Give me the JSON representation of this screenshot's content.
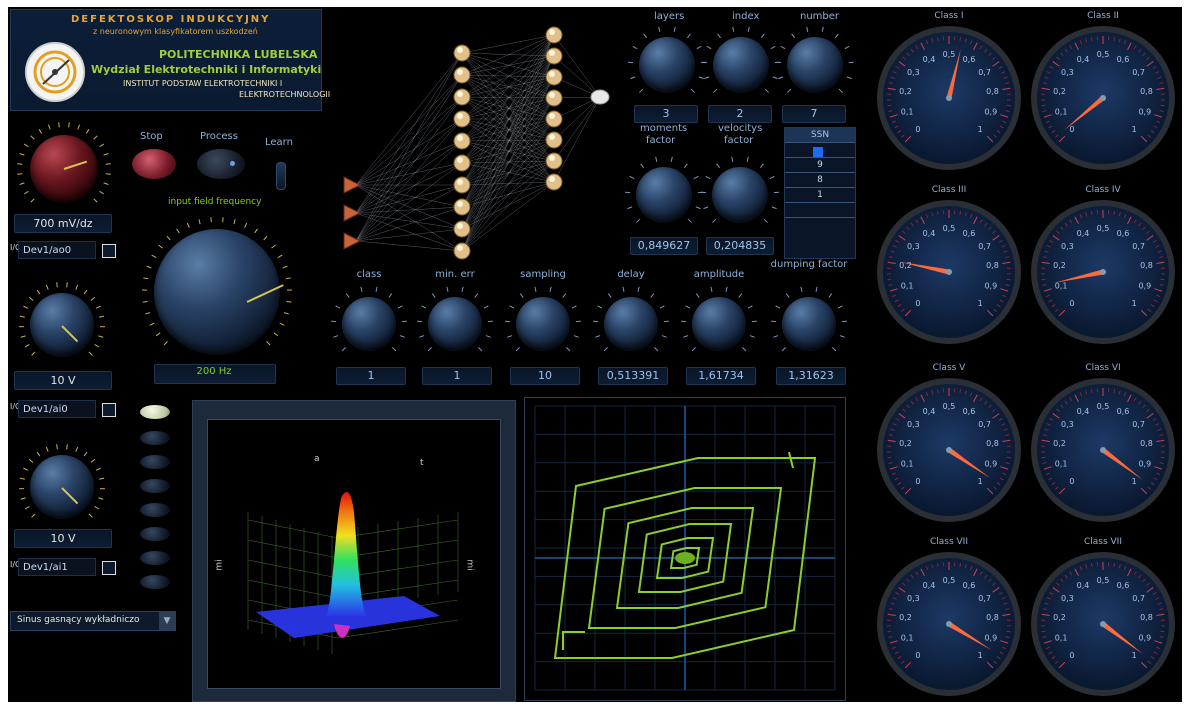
{
  "header": {
    "title": "DEFEKTOSKOP INDUKCYJNY",
    "subtitle": "z neuronowym klasyfikatorem uszkodzeń",
    "university": "POLITECHNIKA LUBELSKA",
    "faculty": "Wydział Elektrotechniki i Informatyki",
    "institute_line1": "INSTITUT PODSTAW ELEKTROTECHNIKI I",
    "institute_line2": "ELEKTROTECHNOLOGII"
  },
  "controls": {
    "stop_label": "Stop",
    "process_label": "Process",
    "learn_label": "Learn",
    "sensitivity_value": "700  mV/dz",
    "channel_ao0": "Dev1/ao0",
    "knob_ao0_value": "10 V",
    "channel_ai0": "Dev1/ai0",
    "knob_ai0_value": "10 V",
    "channel_ai1": "Dev1/ai1",
    "frequency_label": "input field frequency",
    "frequency_value": "200 Hz",
    "signal_type": "Sinus gasnący wykładniczo"
  },
  "network_params": {
    "layers_label": "layers",
    "layers_value": "3",
    "index_label": "index",
    "index_value": "2",
    "number_label": "number",
    "number_value": "7",
    "moments_label_1": "moments",
    "moments_label_2": "factor",
    "moments_value": "0,849627",
    "velocitys_label_1": "velocitys",
    "velocitys_label_2": "factor",
    "velocitys_value": "0,204835"
  },
  "ssn_list": {
    "header": "SSN",
    "items": [
      "9",
      "8",
      "1"
    ]
  },
  "training_params": [
    {
      "label": "class",
      "value": "1"
    },
    {
      "label": "min. err",
      "value": "1"
    },
    {
      "label": "sampling",
      "value": "10"
    },
    {
      "label": "delay",
      "value": "0,513391"
    },
    {
      "label": "amplitude",
      "value": "1,61734"
    },
    {
      "label": "dumping factor",
      "value": "1,31623"
    }
  ],
  "plot3d": {
    "label_a": "a",
    "label_t": "t",
    "axis_left": "mi",
    "axis_right": "mi"
  },
  "gauges": [
    {
      "title": "Class I",
      "value": 0.55
    },
    {
      "title": "Class II",
      "value": 0.02
    },
    {
      "title": "Class III",
      "value": 0.21
    },
    {
      "title": "Class IV",
      "value": 0.12
    },
    {
      "title": "Class V",
      "value": 0.96
    },
    {
      "title": "Class VI",
      "value": 0.97
    },
    {
      "title": "Class VII",
      "value": 0.95
    },
    {
      "title": "Class VII",
      "value": 0.97
    }
  ],
  "gauge_scale": {
    "labels": [
      "0",
      "0,1",
      "0,2",
      "0,3",
      "0,4",
      "0,5",
      "0,6",
      "0,7",
      "0,8",
      "0,9",
      "1"
    ]
  },
  "colors": {
    "knob_indicator": "#d7c34e",
    "gauge_needle": "#ff6a3d",
    "trace": "#8ccf2a",
    "accent_green": "#7ed02a"
  }
}
